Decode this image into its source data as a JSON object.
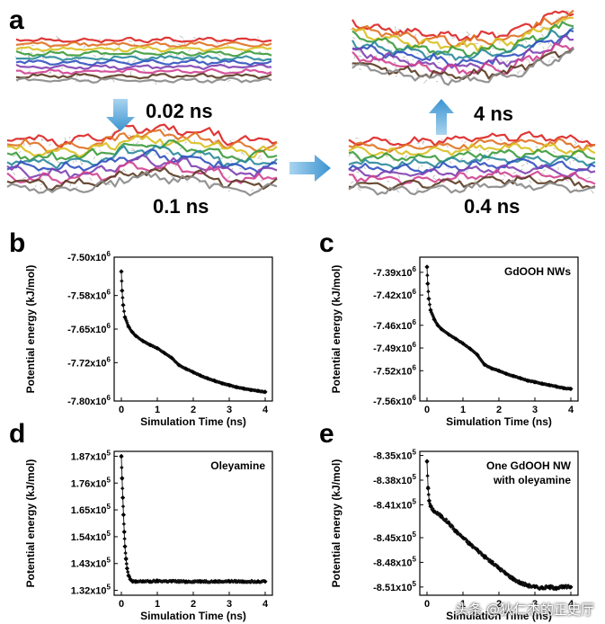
{
  "panel_a": {
    "letter": "a",
    "time_labels": [
      "0.02 ns",
      "0.1 ns",
      "0.4 ns",
      "4 ns"
    ],
    "strand_colors": [
      "#d22",
      "#e07020",
      "#d8c020",
      "#3a9a3a",
      "#2a8a9a",
      "#3050c0",
      "#8040b0",
      "#d04090",
      "#5a3a20",
      "#888888"
    ]
  },
  "watermark": "头条 @狄仁杰的正史厅",
  "chart_data": [
    {
      "panel": "b",
      "type": "scatter",
      "title": "",
      "annotation": "",
      "xlabel": "Simulation Time (ns)",
      "ylabel": "Potential energy (kJ/mol)",
      "xlim": [
        -0.2,
        4.2
      ],
      "ylim": [
        -7800000.0,
        -7500000.0
      ],
      "xticks": [
        0,
        1,
        2,
        3,
        4
      ],
      "xtick_labels": [
        "0",
        "1",
        "2",
        "3",
        "4"
      ],
      "yticks": [
        -7800000.0,
        -7720000.0,
        -7650000.0,
        -7580000.0,
        -7500000.0
      ],
      "ytick_labels": [
        {
          "base": "-7.80x10",
          "exp": "6"
        },
        {
          "base": "-7.72x10",
          "exp": "6"
        },
        {
          "base": "-7.65x10",
          "exp": "6"
        },
        {
          "base": "-7.58x10",
          "exp": "6"
        },
        {
          "base": "-7.50x10",
          "exp": "6"
        }
      ],
      "x": [
        0,
        0.02,
        0.05,
        0.1,
        0.2,
        0.3,
        0.4,
        0.6,
        0.8,
        1.0,
        1.2,
        1.4,
        1.6,
        1.8,
        2.0,
        2.2,
        2.4,
        2.6,
        2.8,
        3.0,
        3.2,
        3.4,
        3.6,
        3.8,
        4.0
      ],
      "y": [
        -7530000.0,
        -7570000.0,
        -7600000.0,
        -7625000.0,
        -7645000.0,
        -7656000.0,
        -7664000.0,
        -7675000.0,
        -7683000.0,
        -7690000.0,
        -7700000.0,
        -7710000.0,
        -7725000.0,
        -7733000.0,
        -7740000.0,
        -7747000.0,
        -7753000.0,
        -7758000.0,
        -7763000.0,
        -7767000.0,
        -7771000.0,
        -7774000.0,
        -7777000.0,
        -7779000.0,
        -7781000.0
      ]
    },
    {
      "panel": "c",
      "type": "scatter",
      "title": "",
      "annotation": "GdOOH NWs",
      "xlabel": "Simulation Time (ns)",
      "ylabel": "Potential energy (kJ/mol)",
      "xlim": [
        -0.2,
        4.2
      ],
      "ylim": [
        -7560000.0,
        -7370000.0
      ],
      "xticks": [
        0,
        1,
        2,
        3,
        4
      ],
      "xtick_labels": [
        "0",
        "1",
        "2",
        "3",
        "4"
      ],
      "yticks": [
        -7560000.0,
        -7520000.0,
        -7490000.0,
        -7460000.0,
        -7420000.0,
        -7390000.0
      ],
      "ytick_labels": [
        {
          "base": "-7.56x10",
          "exp": "6"
        },
        {
          "base": "-7.52x10",
          "exp": "6"
        },
        {
          "base": "-7.49x10",
          "exp": "6"
        },
        {
          "base": "-7.46x10",
          "exp": "6"
        },
        {
          "base": "-7.42x10",
          "exp": "6"
        },
        {
          "base": "-7.39x10",
          "exp": "6"
        }
      ],
      "x": [
        0,
        0.02,
        0.05,
        0.1,
        0.2,
        0.3,
        0.4,
        0.6,
        0.8,
        1.0,
        1.2,
        1.4,
        1.6,
        1.8,
        2.0,
        2.2,
        2.4,
        2.6,
        2.8,
        3.0,
        3.2,
        3.4,
        3.6,
        3.8,
        4.0
      ],
      "y": [
        -7383000.0,
        -7405000.0,
        -7425000.0,
        -7440000.0,
        -7452000.0,
        -7460000.0,
        -7465000.0,
        -7472000.0,
        -7478000.0,
        -7484000.0,
        -7491000.0,
        -7499000.0,
        -7512000.0,
        -7517000.0,
        -7520000.0,
        -7524000.0,
        -7527000.0,
        -7530000.0,
        -7533000.0,
        -7535000.0,
        -7537000.0,
        -7539000.0,
        -7541000.0,
        -7543000.0,
        -7544000.0
      ]
    },
    {
      "panel": "d",
      "type": "scatter",
      "title": "",
      "annotation": "Oleyamine",
      "xlabel": "Simulation Time (ns)",
      "ylabel": "Potential energy (kJ/mol)",
      "xlim": [
        -0.2,
        4.2
      ],
      "ylim": [
        130000.0,
        189000.0
      ],
      "xticks": [
        0,
        1,
        2,
        3,
        4
      ],
      "xtick_labels": [
        "0",
        "1",
        "2",
        "3",
        "4"
      ],
      "yticks": [
        132000.0,
        143000.0,
        154000.0,
        165000.0,
        176000.0,
        187000.0
      ],
      "ytick_labels": [
        {
          "base": "1.32x10",
          "exp": "5"
        },
        {
          "base": "1.43x10",
          "exp": "5"
        },
        {
          "base": "1.54x10",
          "exp": "5"
        },
        {
          "base": "1.65x10",
          "exp": "5"
        },
        {
          "base": "1.76x10",
          "exp": "5"
        },
        {
          "base": "1.87x10",
          "exp": "5"
        }
      ],
      "x": [
        0,
        0.02,
        0.04,
        0.06,
        0.08,
        0.1,
        0.13,
        0.16,
        0.2,
        0.25,
        0.3,
        0.4,
        0.6,
        0.8,
        1.0,
        1.4,
        1.8,
        2.2,
        2.6,
        3.0,
        3.4,
        3.8,
        4.0
      ],
      "y": [
        187000.0,
        178000.0,
        170000.0,
        163000.0,
        156000.0,
        150000.0,
        145000.0,
        141000.0,
        138000.0,
        136500.0,
        135800.0,
        135500.0,
        135700.0,
        135600.0,
        135800.0,
        135700.0,
        135600.0,
        135700.0,
        135600.0,
        135700.0,
        135600.0,
        135700.0,
        135600.0
      ]
    },
    {
      "panel": "e",
      "type": "scatter",
      "title": "",
      "annotation": "One GdOOH NW with oleyamine",
      "xlabel": "Simulation Time (ns)",
      "ylabel": "Potential energy (kJ/mol)",
      "xlim": [
        -0.2,
        4.2
      ],
      "ylim": [
        -852000.0,
        -834500.0
      ],
      "xticks": [
        0,
        1,
        2,
        3,
        4
      ],
      "xtick_labels": [
        "0",
        "1",
        "2",
        "3",
        "4"
      ],
      "yticks": [
        -851000.0,
        -848000.0,
        -845000.0,
        -841000.0,
        -838000.0,
        -835000.0
      ],
      "ytick_labels": [
        {
          "base": "-8.51x10",
          "exp": "5"
        },
        {
          "base": "-8.48x10",
          "exp": "5"
        },
        {
          "base": "-8.45x10",
          "exp": "5"
        },
        {
          "base": "-8.41x10",
          "exp": "5"
        },
        {
          "base": "-8.38x10",
          "exp": "5"
        },
        {
          "base": "-8.35x10",
          "exp": "5"
        }
      ],
      "x": [
        0,
        0.03,
        0.06,
        0.1,
        0.2,
        0.4,
        0.6,
        0.8,
        1.0,
        1.2,
        1.4,
        1.6,
        1.8,
        2.0,
        2.2,
        2.4,
        2.6,
        2.8,
        3.0,
        3.2,
        3.4,
        3.6,
        3.8,
        4.0
      ],
      "y": [
        -835700.0,
        -839000.0,
        -840500.0,
        -841200.0,
        -841800.0,
        -842400.0,
        -843200.0,
        -844200.0,
        -845000.0,
        -845800.0,
        -846500.0,
        -847300.0,
        -848000.0,
        -848700.0,
        -849400.0,
        -850000.0,
        -850500.0,
        -850800.0,
        -851000.0,
        -851100.0,
        -851000.0,
        -851100.0,
        -851000.0,
        -851000.0
      ]
    }
  ]
}
